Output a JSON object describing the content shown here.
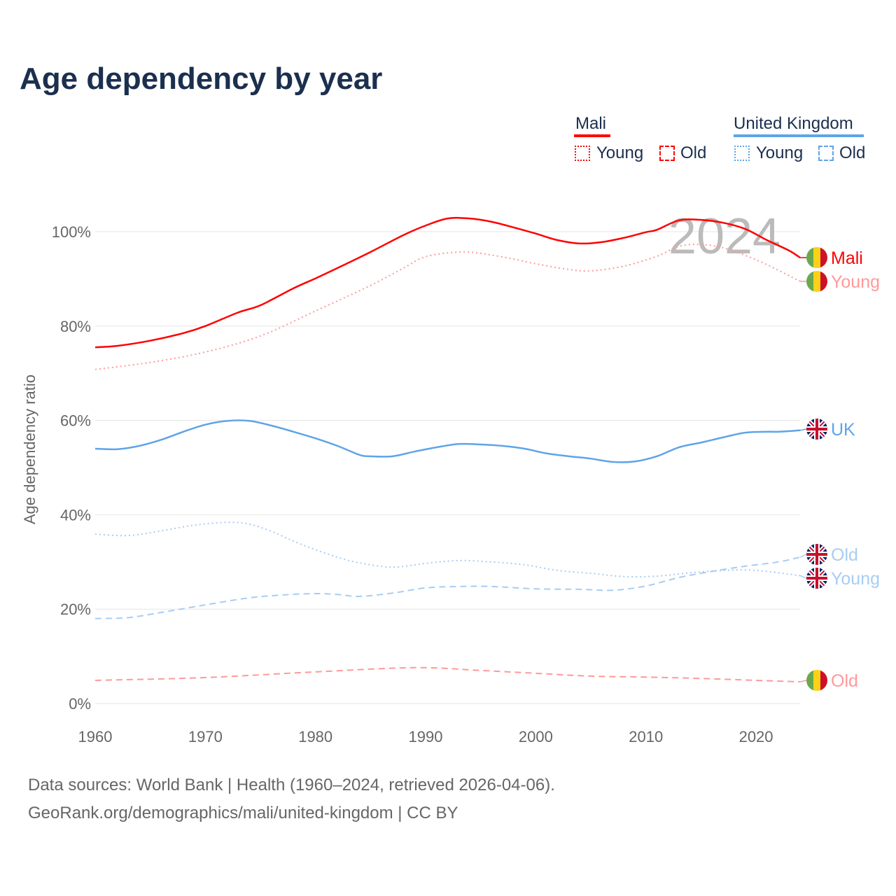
{
  "title": "Age dependency by year",
  "legend": {
    "groups": [
      {
        "name": "Mali",
        "color": "#ff0000",
        "items": [
          "Young",
          "Old"
        ]
      },
      {
        "name": "United Kingdom",
        "color": "#5fa4e8",
        "items": [
          "Young",
          "Old"
        ]
      }
    ]
  },
  "footer": {
    "line1": "Data sources: World Bank | Health (1960–2024, retrieved 2026-04-06).",
    "line2": "GeoRank.org/demographics/mali/united-kingdom | CC BY"
  },
  "chart_data": {
    "type": "line",
    "title": "Age dependency by year",
    "xlabel": "",
    "ylabel": "Age dependency ratio",
    "year_watermark": "2024",
    "xlim": [
      1960,
      2024
    ],
    "ylim": [
      0,
      105
    ],
    "xticks": [
      1960,
      1970,
      1980,
      1990,
      2000,
      2010,
      2020
    ],
    "yticks": [
      0,
      20,
      40,
      60,
      80,
      100
    ],
    "ytick_labels": [
      "0%",
      "20%",
      "40%",
      "60%",
      "80%",
      "100%"
    ],
    "grid": true,
    "series": [
      {
        "id": "mali",
        "name": "Mali",
        "end_label": "Mali",
        "flag": "mali",
        "color": "#ff0000",
        "style": "solid",
        "points": [
          [
            1960,
            75.5
          ],
          [
            1962,
            75.8
          ],
          [
            1965,
            76.9
          ],
          [
            1968,
            78.5
          ],
          [
            1970,
            80.0
          ],
          [
            1973,
            82.9
          ],
          [
            1975,
            84.4
          ],
          [
            1978,
            88.0
          ],
          [
            1980,
            90.1
          ],
          [
            1982,
            92.3
          ],
          [
            1985,
            95.7
          ],
          [
            1988,
            99.3
          ],
          [
            1990,
            101.3
          ],
          [
            1992,
            102.8
          ],
          [
            1994,
            102.8
          ],
          [
            1996,
            102.1
          ],
          [
            1998,
            100.9
          ],
          [
            2000,
            99.6
          ],
          [
            2002,
            98.2
          ],
          [
            2004,
            97.5
          ],
          [
            2006,
            97.8
          ],
          [
            2008,
            98.7
          ],
          [
            2010,
            99.9
          ],
          [
            2011,
            100.4
          ],
          [
            2013,
            102.4
          ],
          [
            2015,
            102.5
          ],
          [
            2017,
            101.9
          ],
          [
            2019,
            100.6
          ],
          [
            2021,
            98.2
          ],
          [
            2023,
            96.0
          ],
          [
            2024,
            94.5
          ]
        ]
      },
      {
        "id": "mali-young",
        "name": "Mali Young",
        "end_label": "Young",
        "flag": "mali",
        "color": "#ff9999",
        "style": "dotted",
        "points": [
          [
            1960,
            70.8
          ],
          [
            1965,
            72.3
          ],
          [
            1970,
            74.5
          ],
          [
            1975,
            77.9
          ],
          [
            1980,
            83.2
          ],
          [
            1985,
            88.6
          ],
          [
            1988,
            92.3
          ],
          [
            1990,
            94.7
          ],
          [
            1993,
            95.7
          ],
          [
            1995,
            95.4
          ],
          [
            1998,
            94.2
          ],
          [
            2000,
            93.2
          ],
          [
            2003,
            92.0
          ],
          [
            2005,
            91.7
          ],
          [
            2008,
            92.7
          ],
          [
            2011,
            94.8
          ],
          [
            2013,
            96.9
          ],
          [
            2015,
            97.3
          ],
          [
            2017,
            96.6
          ],
          [
            2019,
            95.0
          ],
          [
            2021,
            93.0
          ],
          [
            2024,
            89.5
          ]
        ]
      },
      {
        "id": "mali-old",
        "name": "Mali Old",
        "end_label": "Old",
        "flag": "mali",
        "color": "#ff9999",
        "style": "dashed",
        "points": [
          [
            1960,
            4.9
          ],
          [
            1970,
            5.5
          ],
          [
            1980,
            6.7
          ],
          [
            1989,
            7.6
          ],
          [
            1995,
            7.0
          ],
          [
            2000,
            6.4
          ],
          [
            2005,
            5.8
          ],
          [
            2010,
            5.6
          ],
          [
            2015,
            5.3
          ],
          [
            2020,
            4.9
          ],
          [
            2024,
            4.6
          ]
        ]
      },
      {
        "id": "uk",
        "name": "United Kingdom",
        "end_label": "UK",
        "flag": "uk",
        "color": "#5fa4e8",
        "style": "solid",
        "points": [
          [
            1960,
            54.0
          ],
          [
            1962,
            53.9
          ],
          [
            1964,
            54.6
          ],
          [
            1966,
            55.9
          ],
          [
            1968,
            57.6
          ],
          [
            1970,
            59.1
          ],
          [
            1972,
            59.9
          ],
          [
            1974,
            59.9
          ],
          [
            1976,
            58.9
          ],
          [
            1978,
            57.6
          ],
          [
            1980,
            56.2
          ],
          [
            1982,
            54.6
          ],
          [
            1984,
            52.7
          ],
          [
            1985,
            52.4
          ],
          [
            1987,
            52.4
          ],
          [
            1989,
            53.4
          ],
          [
            1991,
            54.3
          ],
          [
            1993,
            55.0
          ],
          [
            1995,
            54.9
          ],
          [
            1997,
            54.6
          ],
          [
            1999,
            54.0
          ],
          [
            2001,
            53.0
          ],
          [
            2003,
            52.4
          ],
          [
            2005,
            51.9
          ],
          [
            2007,
            51.2
          ],
          [
            2009,
            51.3
          ],
          [
            2011,
            52.4
          ],
          [
            2013,
            54.3
          ],
          [
            2015,
            55.3
          ],
          [
            2017,
            56.4
          ],
          [
            2019,
            57.4
          ],
          [
            2021,
            57.6
          ],
          [
            2022,
            57.6
          ],
          [
            2024,
            57.9
          ]
        ]
      },
      {
        "id": "uk-old",
        "name": "United Kingdom Old",
        "end_label": "Old",
        "flag": "uk",
        "color": "#a8cdf2",
        "style": "dashed",
        "points": [
          [
            1960,
            18.0
          ],
          [
            1963,
            18.2
          ],
          [
            1966,
            19.3
          ],
          [
            1970,
            20.9
          ],
          [
            1974,
            22.4
          ],
          [
            1977,
            23.0
          ],
          [
            1980,
            23.3
          ],
          [
            1982,
            23.1
          ],
          [
            1984,
            22.7
          ],
          [
            1987,
            23.4
          ],
          [
            1990,
            24.5
          ],
          [
            1993,
            24.8
          ],
          [
            1996,
            24.8
          ],
          [
            2000,
            24.3
          ],
          [
            2004,
            24.2
          ],
          [
            2007,
            24.0
          ],
          [
            2010,
            24.9
          ],
          [
            2013,
            26.7
          ],
          [
            2016,
            28.0
          ],
          [
            2019,
            29.1
          ],
          [
            2022,
            30.0
          ],
          [
            2024,
            31.0
          ]
        ]
      },
      {
        "id": "uk-young",
        "name": "United Kingdom Young",
        "end_label": "Young",
        "flag": "uk",
        "color": "#a8cdf2",
        "style": "dotted",
        "points": [
          [
            1960,
            35.9
          ],
          [
            1963,
            35.6
          ],
          [
            1966,
            36.6
          ],
          [
            1969,
            37.8
          ],
          [
            1972,
            38.4
          ],
          [
            1974,
            38.0
          ],
          [
            1976,
            36.5
          ],
          [
            1978,
            34.4
          ],
          [
            1980,
            32.6
          ],
          [
            1982,
            31.0
          ],
          [
            1984,
            29.8
          ],
          [
            1987,
            28.9
          ],
          [
            1990,
            29.7
          ],
          [
            1993,
            30.3
          ],
          [
            1996,
            30.0
          ],
          [
            1999,
            29.4
          ],
          [
            2002,
            28.2
          ],
          [
            2005,
            27.6
          ],
          [
            2008,
            26.9
          ],
          [
            2011,
            27.0
          ],
          [
            2014,
            27.7
          ],
          [
            2017,
            28.2
          ],
          [
            2019,
            28.3
          ],
          [
            2021,
            28.0
          ],
          [
            2024,
            27.1
          ]
        ]
      }
    ]
  }
}
